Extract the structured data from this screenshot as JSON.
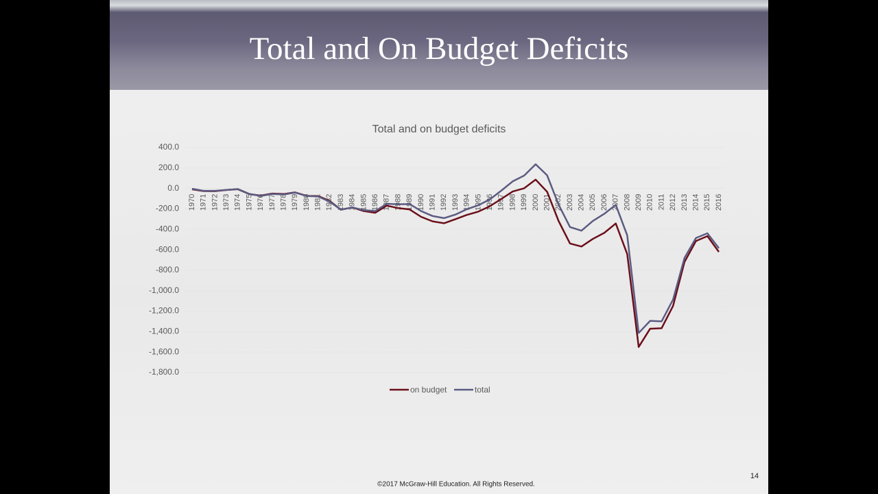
{
  "slide": {
    "title": "Total and On Budget Deficits",
    "footer": "©2017 McGraw-Hill Education. All Rights Reserved.",
    "page_number": "14"
  },
  "chart_data": {
    "type": "line",
    "title": "Total and on budget deficits",
    "categories": [
      "1970",
      "1971",
      "1972",
      "1973",
      "1974",
      "1975",
      "1976",
      "1977",
      "1978",
      "1979",
      "1980",
      "1981",
      "1982",
      "1983",
      "1984",
      "1985",
      "1986",
      "1987",
      "1988",
      "1989",
      "1990",
      "1991",
      "1992",
      "1993",
      "1994",
      "1995",
      "1996",
      "1997",
      "1998",
      "1999",
      "2000",
      "2001",
      "2002",
      "2003",
      "2004",
      "2005",
      "2006",
      "2007",
      "2008",
      "2009",
      "2010",
      "2011",
      "2012",
      "2013",
      "2014",
      "2015",
      "2016"
    ],
    "series": [
      {
        "name": "on budget",
        "color": "#6b0f1a",
        "values": [
          -8.7,
          -26.1,
          -26.4,
          -15.4,
          -8.0,
          -55.3,
          -70.5,
          -49.8,
          -54.9,
          -38.7,
          -72.7,
          -74.0,
          -120.6,
          -207.7,
          -185.3,
          -221.5,
          -237.9,
          -168.4,
          -192.3,
          -205.4,
          -277.6,
          -321.4,
          -340.4,
          -300.4,
          -258.8,
          -226.4,
          -174.0,
          -103.2,
          -29.9,
          1.9,
          86.4,
          -32.4,
          -317.4,
          -538.4,
          -568.0,
          -493.6,
          -434.5,
          -342.2,
          -641.8,
          -1549.7,
          -1371.4,
          -1366.8,
          -1148.9,
          -719.0,
          -514.1,
          -465.8,
          -620.2
        ]
      },
      {
        "name": "total",
        "color": "#5b5b82",
        "values": [
          -2.8,
          -23.0,
          -23.4,
          -14.9,
          -6.1,
          -53.2,
          -73.7,
          -53.7,
          -59.2,
          -40.7,
          -73.8,
          -79.0,
          -128.0,
          -207.8,
          -185.4,
          -212.3,
          -221.2,
          -149.7,
          -155.2,
          -152.6,
          -221.0,
          -269.2,
          -290.3,
          -255.1,
          -203.2,
          -164.0,
          -107.4,
          -21.9,
          69.3,
          125.6,
          236.2,
          128.2,
          -157.8,
          -377.6,
          -412.7,
          -318.3,
          -248.2,
          -160.7,
          -458.6,
          -1412.7,
          -1294.4,
          -1299.6,
          -1087.0,
          -679.5,
          -484.6,
          -438.5,
          -584.7
        ]
      }
    ],
    "ylim": [
      -1800,
      400
    ],
    "yticks": [
      {
        "value": 400,
        "label": "400.0"
      },
      {
        "value": 200,
        "label": "200.0"
      },
      {
        "value": 0,
        "label": "0.0"
      },
      {
        "value": -200,
        "label": "-200.0"
      },
      {
        "value": -400,
        "label": "-400.0"
      },
      {
        "value": -600,
        "label": "-600.0"
      },
      {
        "value": -800,
        "label": "-800.0"
      },
      {
        "value": -1000,
        "label": "-1,000.0"
      },
      {
        "value": -1200,
        "label": "-1,200.0"
      },
      {
        "value": -1400,
        "label": "-1,400.0"
      },
      {
        "value": -1600,
        "label": "-1,600.0"
      },
      {
        "value": -1800,
        "label": "-1,800.0"
      }
    ],
    "grid": true
  }
}
